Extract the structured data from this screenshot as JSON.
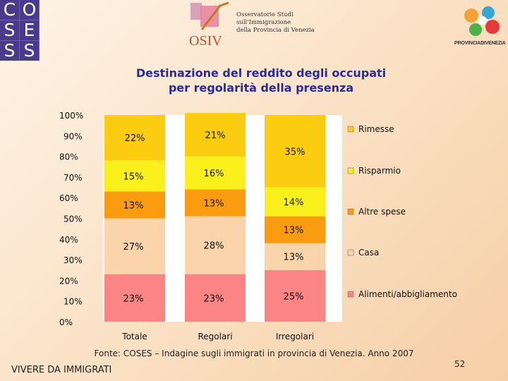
{
  "header": {
    "coses_logo_letters": [
      "C",
      "O",
      "S",
      "E",
      "S",
      "S"
    ],
    "osiv_logo_text": "OSIV",
    "osiv_lines": [
      "Osservatorio Studi",
      "sull'Immigrazione",
      "della Provincia di Venezia"
    ],
    "provincia_logo_text": "PROVINCIADIVENEZIA"
  },
  "title_lines": [
    "Destinazione del reddito degli occupati",
    "per regolarità della presenza"
  ],
  "colors": {
    "alimenti": "#fb8484",
    "casa": "#fcd4ac",
    "altre_spese": "#fb9b0f",
    "risparmio": "#fcf01c",
    "rimesse": "#fccc11"
  },
  "chart_data": {
    "type": "bar",
    "stacked": true,
    "categories": [
      "Totale",
      "Regolari",
      "Irregolari"
    ],
    "series": [
      {
        "name": "Alimenti/abbigliamento",
        "values": [
          23,
          23,
          25
        ],
        "labels": [
          "23%",
          "23%",
          "25%"
        ]
      },
      {
        "name": "Casa",
        "values": [
          27,
          28,
          13
        ],
        "labels": [
          "27%",
          "28%",
          "13%"
        ]
      },
      {
        "name": "Altre spese",
        "values": [
          13,
          13,
          13
        ],
        "labels": [
          "13%",
          "13%",
          "13%"
        ]
      },
      {
        "name": "Risparmio",
        "values": [
          15,
          16,
          14
        ],
        "labels": [
          "15%",
          "16%",
          "14%"
        ]
      },
      {
        "name": "Rimesse",
        "values": [
          22,
          21,
          35
        ],
        "labels": [
          "22%",
          "21%",
          "35%"
        ]
      }
    ],
    "legend_order": [
      "Rimesse",
      "Risparmio",
      "Altre spese",
      "Casa",
      "Alimenti/abbigliamento"
    ],
    "ylim": [
      0,
      100
    ],
    "yticks": [
      "0%",
      "10%",
      "20%",
      "30%",
      "40%",
      "50%",
      "60%",
      "70%",
      "80%",
      "90%",
      "100%"
    ],
    "legend_position": "right",
    "grid": false
  },
  "footer": {
    "source": "Fonte: COSES – Indagine sugli immigrati in provincia di Venezia. Anno 2007",
    "left_label": "VIVERE DA IMMIGRATI",
    "page_number": "52"
  }
}
